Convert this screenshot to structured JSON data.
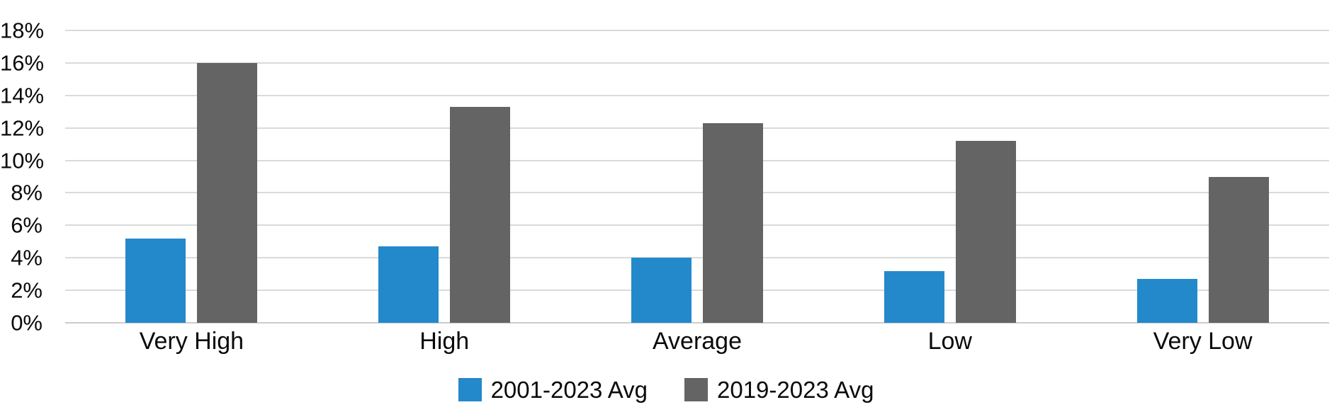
{
  "chart_data": {
    "type": "bar",
    "categories": [
      "Very High",
      "High",
      "Average",
      "Low",
      "Very Low"
    ],
    "series": [
      {
        "name": "2001-2023 Avg",
        "color": "#2389cb",
        "values": [
          5.2,
          4.7,
          4.0,
          3.2,
          2.7
        ]
      },
      {
        "name": "2019-2023 Avg",
        "color": "#646464",
        "values": [
          16.0,
          13.3,
          12.3,
          11.2,
          9.0
        ]
      }
    ],
    "title": "",
    "xlabel": "",
    "ylabel": "",
    "ylim": [
      0,
      18
    ],
    "ytick_step": 2,
    "ytick_suffix": "%",
    "ytick_labels": [
      "0%",
      "2%",
      "4%",
      "6%",
      "8%",
      "10%",
      "12%",
      "14%",
      "16%",
      "18%"
    ],
    "grid": "horizontal-only",
    "legend_position": "bottom-center"
  },
  "style": {
    "grid_color": "#dadada",
    "axis_line_color": "#cccccc",
    "text_color": "#0a0a0a",
    "background": "#ffffff"
  }
}
